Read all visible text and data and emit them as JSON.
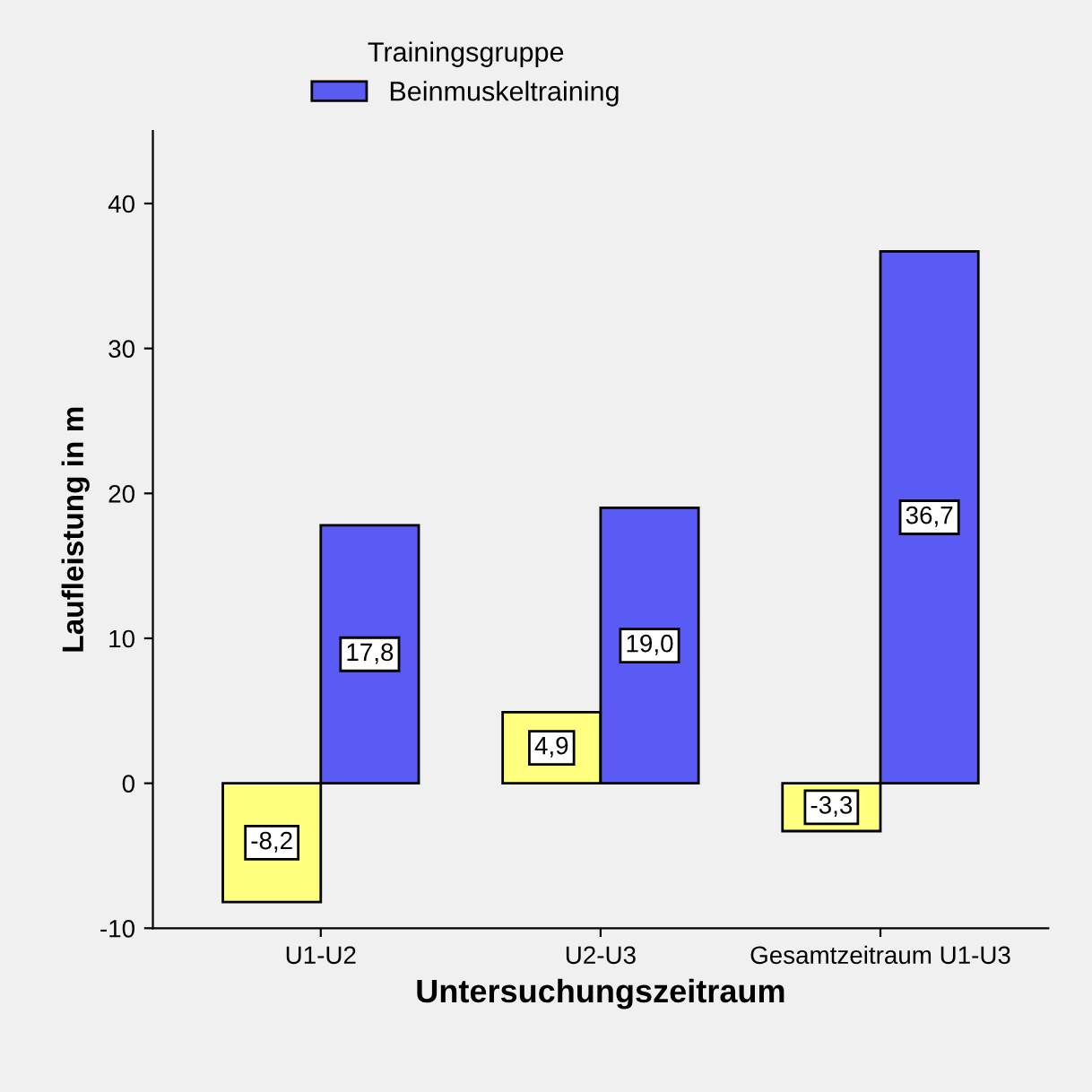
{
  "chart_data": {
    "type": "bar",
    "xlabel": "Untersuchungszeitraum",
    "ylabel": "Laufleistung in m",
    "legend_title": "Trainingsgruppe",
    "categories": [
      "U1-U2",
      "U2-U3",
      "Gesamtzeitraum U1-U3"
    ],
    "series": [
      {
        "color": "#ffff80",
        "values": [
          -8.2,
          4.9,
          -3.3
        ],
        "value_labels": [
          "-8,2",
          "4,9",
          "-3,3"
        ]
      },
      {
        "name": "Beinmuskeltraining",
        "color": "#5a5af5",
        "values": [
          17.8,
          19.0,
          36.7
        ],
        "value_labels": [
          "17,8",
          "19,0",
          "36,7"
        ]
      }
    ],
    "ylim": [
      -10,
      45
    ],
    "yticks": [
      -10,
      0,
      10,
      20,
      30,
      40
    ],
    "grid": false,
    "legend": "top left"
  }
}
